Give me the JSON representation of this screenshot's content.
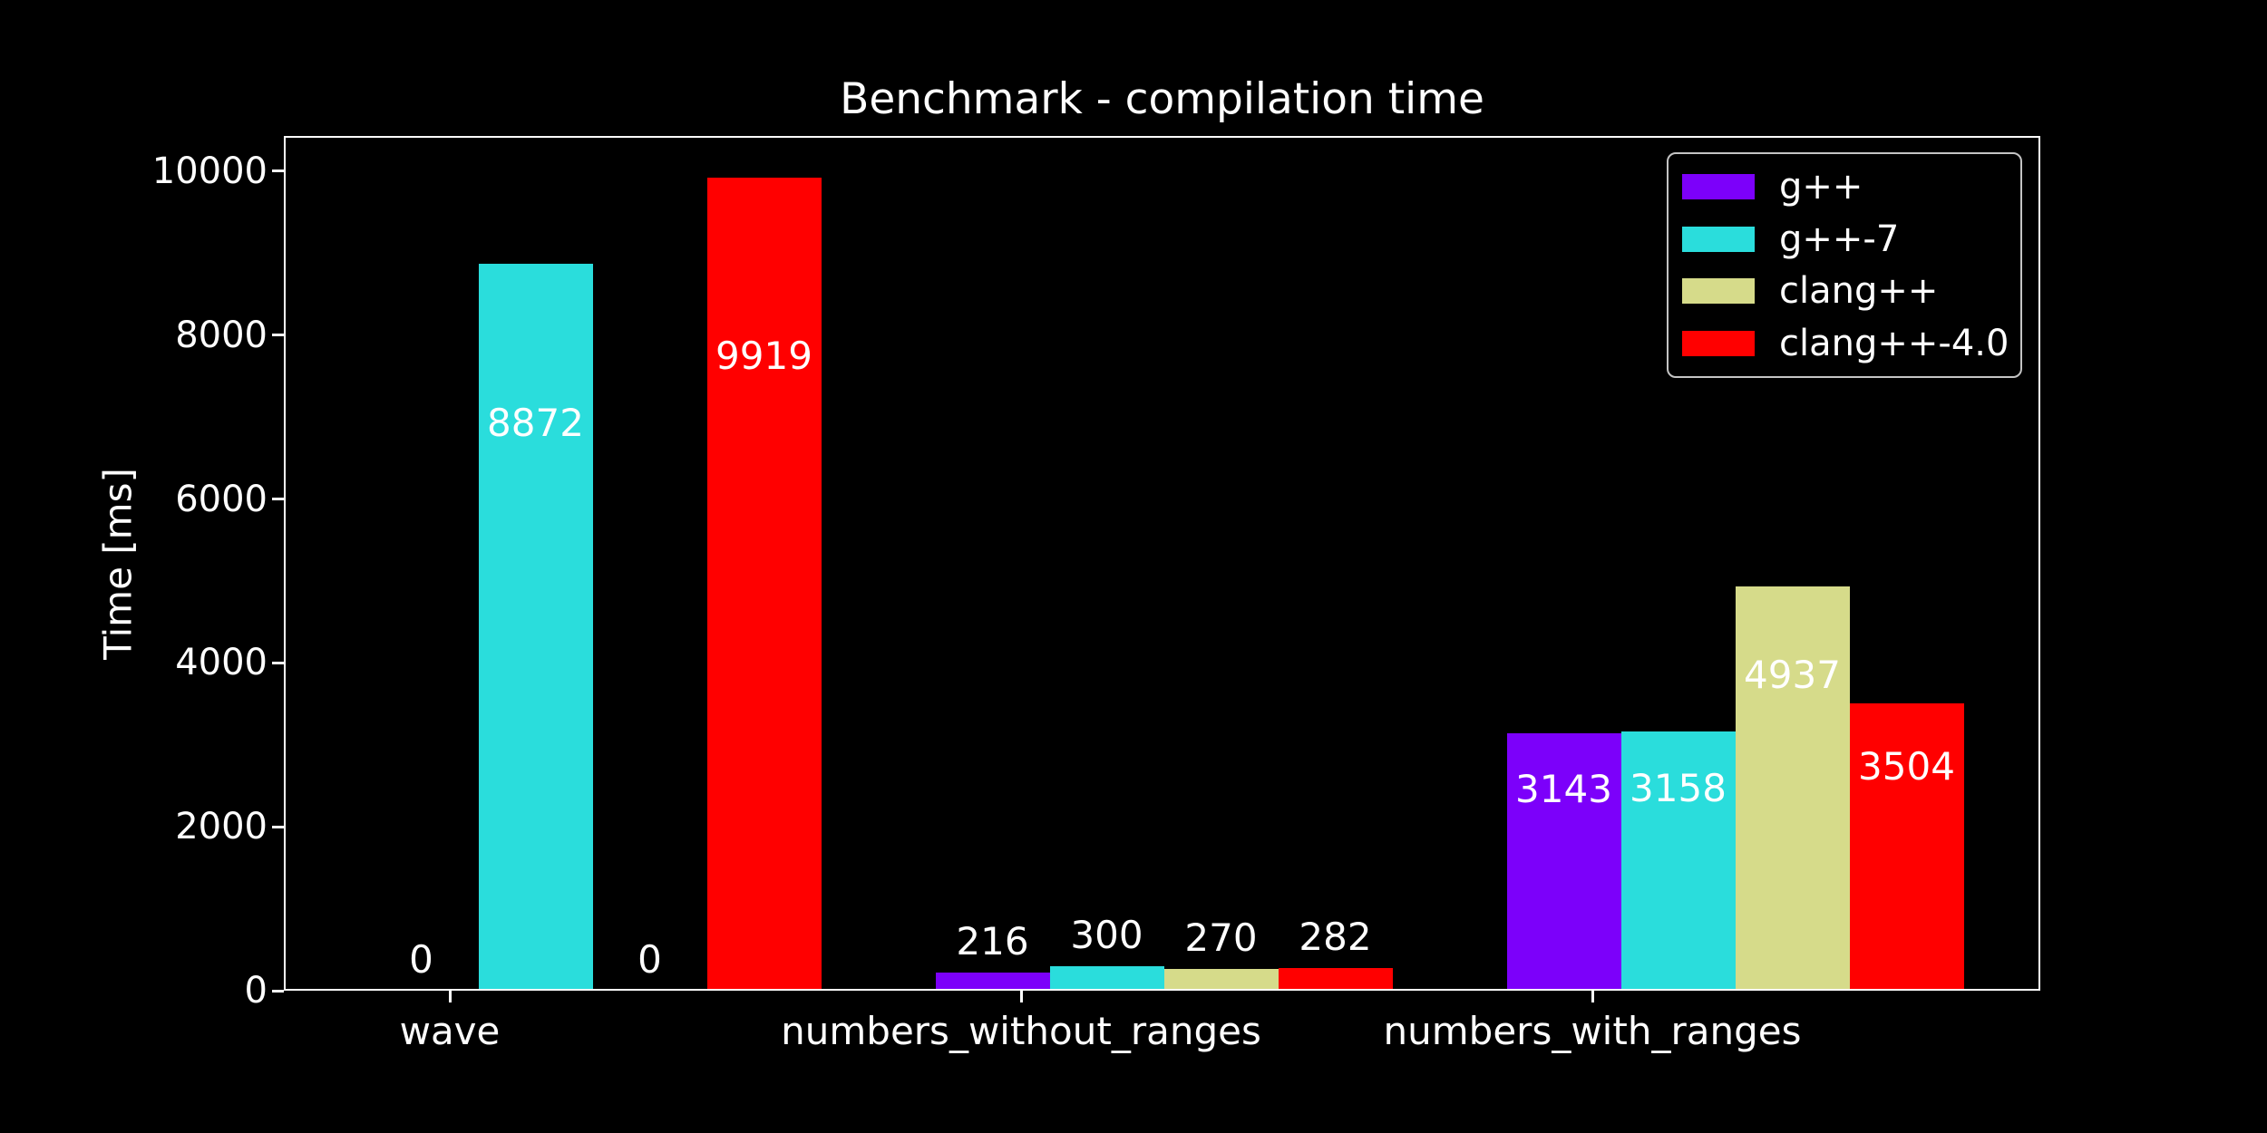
{
  "figure": {
    "background_color": "#000000",
    "text_color": "#ffffff",
    "axes_color": "#ffffff"
  },
  "chart_data": {
    "type": "bar",
    "title": "Benchmark - compilation time",
    "xlabel": "",
    "ylabel": "Time [ms]",
    "categories": [
      "wave",
      "numbers_without_ranges",
      "numbers_with_ranges"
    ],
    "series": [
      {
        "name": "g++",
        "color": "#7c00fa",
        "values": [
          0,
          216,
          3143
        ]
      },
      {
        "name": "g++-7",
        "color": "#2adddc",
        "values": [
          8872,
          300,
          3158
        ]
      },
      {
        "name": "clang++",
        "color": "#d6db8a",
        "values": [
          0,
          270,
          4937
        ]
      },
      {
        "name": "clang++-4.0",
        "color": "#ff0000",
        "values": [
          9919,
          282,
          3504
        ]
      }
    ],
    "bar_value_labels": [
      [
        "0",
        "216",
        "3143"
      ],
      [
        "8872",
        "300",
        "3158"
      ],
      [
        "0",
        "270",
        "4937"
      ],
      [
        "9919",
        "282",
        "3504"
      ]
    ],
    "yticks": [
      "0",
      "2000",
      "4000",
      "6000",
      "8000",
      "10000"
    ],
    "ytick_values": [
      0,
      2000,
      4000,
      6000,
      8000,
      10000
    ],
    "ylim": [
      0,
      10430
    ],
    "grid": false,
    "legend_position": "upper-right",
    "legend_entries": [
      "g++",
      "g++-7",
      "clang++",
      "clang++-4.0"
    ]
  }
}
